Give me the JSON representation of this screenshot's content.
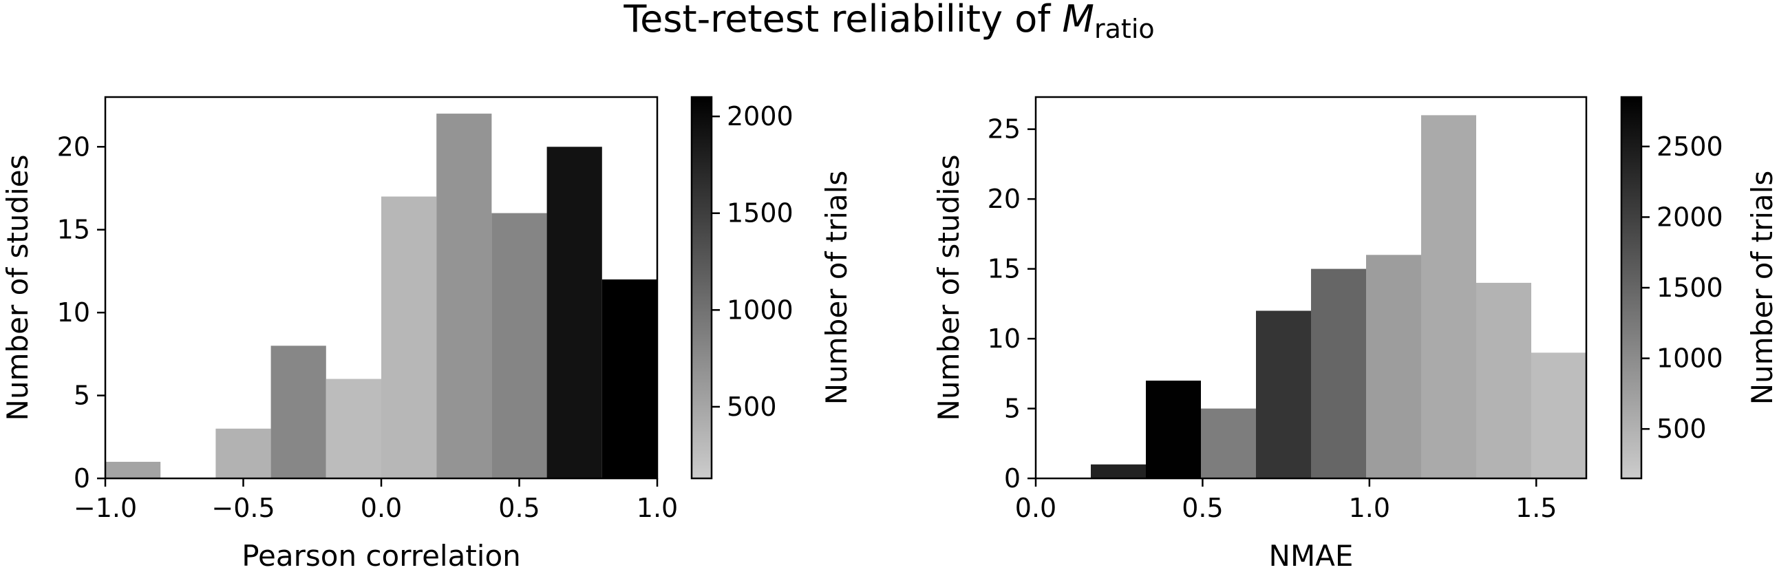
{
  "figure": {
    "title_main": "Test-retest reliability of ",
    "title_symbol": "M",
    "title_subscript": "ratio"
  },
  "chart_data": [
    {
      "type": "bar",
      "xlabel": "Pearson correlation",
      "ylabel": "Number of studies",
      "colorbar_label": "Number of trials",
      "xlim": [
        -1.0,
        1.0
      ],
      "ylim": [
        0,
        23
      ],
      "xticks": [
        -1.0,
        -0.5,
        0.0,
        0.5,
        1.0
      ],
      "xtick_labels": [
        "−1.0",
        "−0.5",
        "0.0",
        "0.5",
        "1.0"
      ],
      "yticks": [
        0,
        5,
        10,
        15,
        20
      ],
      "ytick_labels": [
        "0",
        "5",
        "10",
        "15",
        "20"
      ],
      "bin_edges": [
        -1.0,
        -0.8,
        -0.6,
        -0.4,
        -0.2,
        0.0,
        0.2,
        0.4,
        0.6,
        0.8,
        1.0
      ],
      "values": [
        1,
        0,
        3,
        8,
        6,
        17,
        22,
        16,
        20,
        12
      ],
      "trials": [
        520,
        0,
        380,
        800,
        280,
        330,
        670,
        820,
        1930,
        2100
      ],
      "colorbar_range": [
        130,
        2100
      ],
      "colorbar_ticks": [
        500,
        1000,
        1500,
        2000
      ],
      "colorbar_tick_labels": [
        "500",
        "1000",
        "1500",
        "2000"
      ],
      "grid": false
    },
    {
      "type": "bar",
      "xlabel": "NMAE",
      "ylabel": "Number of studies",
      "colorbar_label": "Number of trials",
      "xlim": [
        0.0,
        1.65
      ],
      "ylim": [
        0,
        27.3
      ],
      "xticks": [
        0.0,
        0.5,
        1.0,
        1.5
      ],
      "xtick_labels": [
        "0.0",
        "0.5",
        "1.0",
        "1.5"
      ],
      "yticks": [
        0,
        5,
        10,
        15,
        20,
        25
      ],
      "ytick_labels": [
        "0",
        "5",
        "10",
        "15",
        "20",
        "25"
      ],
      "bin_edges": [
        0.0,
        0.165,
        0.33,
        0.495,
        0.66,
        0.825,
        0.99,
        1.155,
        1.32,
        1.485,
        1.65
      ],
      "values": [
        0,
        1,
        7,
        5,
        12,
        15,
        16,
        26,
        14,
        9
      ],
      "trials": [
        0,
        2400,
        2840,
        1200,
        2150,
        1500,
        770,
        600,
        480,
        350
      ],
      "colorbar_range": [
        150,
        2850
      ],
      "colorbar_ticks": [
        500,
        1000,
        1500,
        2000,
        2500
      ],
      "colorbar_tick_labels": [
        "500",
        "1000",
        "1500",
        "2000",
        "2500"
      ],
      "grid": false
    }
  ]
}
